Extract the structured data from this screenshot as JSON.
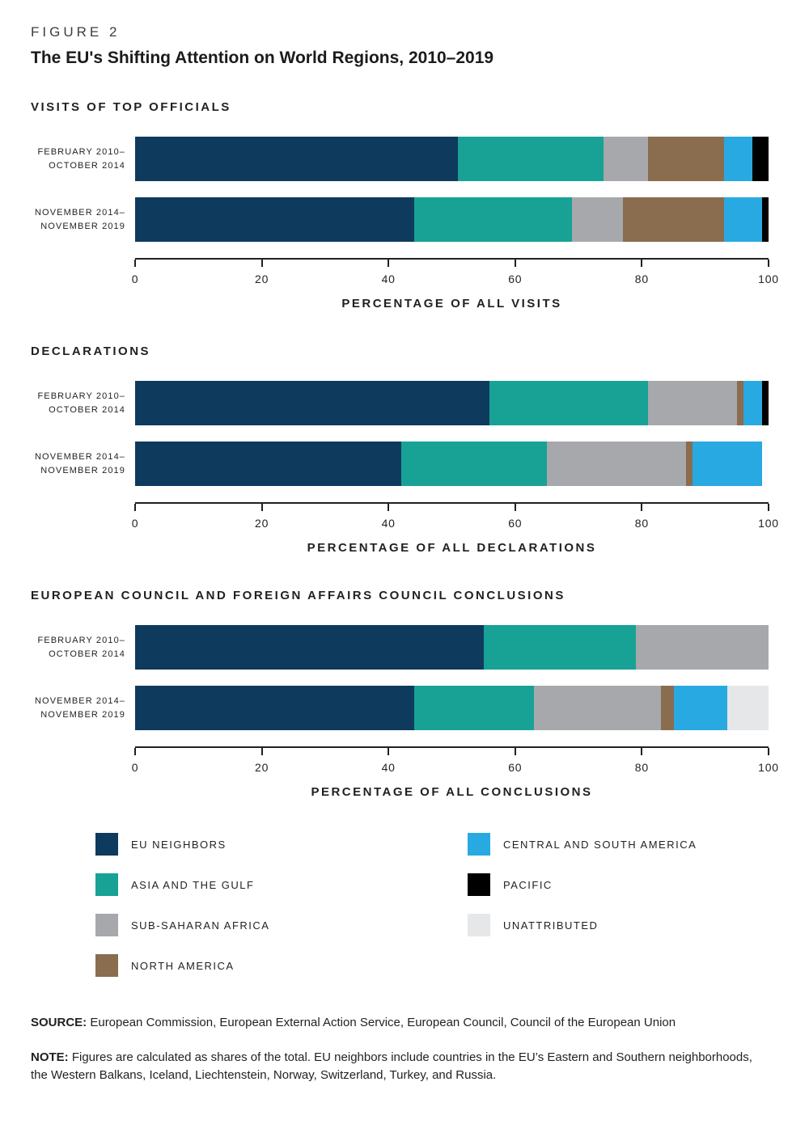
{
  "figure": {
    "kicker": "FIGURE 2",
    "title": "The EU's Shifting Attention on World Regions, 2010–2019"
  },
  "colors": {
    "eu_neighbors": "#0E3A5D",
    "asia_gulf": "#17A295",
    "sub_saharan_africa": "#A6A8AB",
    "north_america": "#8A6C4E",
    "central_south_america": "#29A9E1",
    "pacific": "#000000",
    "unattributed": "#E6E7E8"
  },
  "chart_data": [
    {
      "type": "bar",
      "orientation": "horizontal",
      "stacked": true,
      "title": "VISITS OF TOP OFFICIALS",
      "xlabel": "PERCENTAGE OF ALL VISITS",
      "xlim": [
        0,
        100
      ],
      "xticks": [
        0,
        20,
        40,
        60,
        80,
        100
      ],
      "categories": [
        [
          "FEBRUARY 2010–",
          "OCTOBER 2014"
        ],
        [
          "NOVEMBER 2014–",
          "NOVEMBER 2019"
        ]
      ],
      "series": [
        {
          "name": "EU NEIGHBORS",
          "color_key": "eu_neighbors",
          "values": [
            51,
            44
          ]
        },
        {
          "name": "ASIA AND THE GULF",
          "color_key": "asia_gulf",
          "values": [
            23,
            25
          ]
        },
        {
          "name": "SUB-SAHARAN AFRICA",
          "color_key": "sub_saharan_africa",
          "values": [
            7,
            8
          ]
        },
        {
          "name": "NORTH AMERICA",
          "color_key": "north_america",
          "values": [
            12,
            16
          ]
        },
        {
          "name": "CENTRAL AND SOUTH AMERICA",
          "color_key": "central_south_america",
          "values": [
            4.5,
            6
          ]
        },
        {
          "name": "PACIFIC",
          "color_key": "pacific",
          "values": [
            2.5,
            1
          ]
        }
      ]
    },
    {
      "type": "bar",
      "orientation": "horizontal",
      "stacked": true,
      "title": "DECLARATIONS",
      "xlabel": "PERCENTAGE OF ALL DECLARATIONS",
      "xlim": [
        0,
        100
      ],
      "xticks": [
        0,
        20,
        40,
        60,
        80,
        100
      ],
      "categories": [
        [
          "FEBRUARY 2010–",
          "OCTOBER 2014"
        ],
        [
          "NOVEMBER 2014–",
          "NOVEMBER 2019"
        ]
      ],
      "series": [
        {
          "name": "EU NEIGHBORS",
          "color_key": "eu_neighbors",
          "values": [
            56,
            42
          ]
        },
        {
          "name": "ASIA AND THE GULF",
          "color_key": "asia_gulf",
          "values": [
            25,
            23
          ]
        },
        {
          "name": "SUB-SAHARAN AFRICA",
          "color_key": "sub_saharan_africa",
          "values": [
            14,
            22
          ]
        },
        {
          "name": "NORTH AMERICA",
          "color_key": "north_america",
          "values": [
            1,
            1
          ]
        },
        {
          "name": "CENTRAL AND SOUTH AMERICA",
          "color_key": "central_south_america",
          "values": [
            3,
            11
          ]
        },
        {
          "name": "PACIFIC",
          "color_key": "pacific",
          "values": [
            1,
            0
          ]
        }
      ]
    },
    {
      "type": "bar",
      "orientation": "horizontal",
      "stacked": true,
      "title": "EUROPEAN COUNCIL AND FOREIGN AFFAIRS COUNCIL CONCLUSIONS",
      "xlabel": "PERCENTAGE OF ALL CONCLUSIONS",
      "xlim": [
        0,
        100
      ],
      "xticks": [
        0,
        20,
        40,
        60,
        80,
        100
      ],
      "categories": [
        [
          "FEBRUARY 2010–",
          "OCTOBER 2014"
        ],
        [
          "NOVEMBER 2014–",
          "NOVEMBER 2019"
        ]
      ],
      "series": [
        {
          "name": "EU NEIGHBORS",
          "color_key": "eu_neighbors",
          "values": [
            55,
            44
          ]
        },
        {
          "name": "ASIA AND THE GULF",
          "color_key": "asia_gulf",
          "values": [
            24,
            19
          ]
        },
        {
          "name": "SUB-SAHARAN AFRICA",
          "color_key": "sub_saharan_africa",
          "values": [
            21,
            20
          ]
        },
        {
          "name": "NORTH AMERICA",
          "color_key": "north_america",
          "values": [
            0,
            2
          ]
        },
        {
          "name": "CENTRAL AND SOUTH AMERICA",
          "color_key": "central_south_america",
          "values": [
            0,
            8.5
          ]
        },
        {
          "name": "UNATTRIBUTED",
          "color_key": "unattributed",
          "values": [
            0,
            6.5
          ]
        }
      ]
    }
  ],
  "legend": {
    "columns": [
      [
        {
          "label": "EU NEIGHBORS",
          "color_key": "eu_neighbors"
        },
        {
          "label": "ASIA AND THE GULF",
          "color_key": "asia_gulf"
        },
        {
          "label": "SUB-SAHARAN AFRICA",
          "color_key": "sub_saharan_africa"
        },
        {
          "label": "NORTH AMERICA",
          "color_key": "north_america"
        }
      ],
      [
        {
          "label": "CENTRAL AND SOUTH AMERICA",
          "color_key": "central_south_america"
        },
        {
          "label": "PACIFIC",
          "color_key": "pacific"
        },
        {
          "label": "UNATTRIBUTED",
          "color_key": "unattributed"
        }
      ]
    ]
  },
  "footer": {
    "source_label": "SOURCE:",
    "source_text": "European Commission, European External Action Service, European Council, Council of the European Union",
    "note_label": "NOTE:",
    "note_text": "Figures are calculated as shares of the total. EU neighbors include countries in the EU’s Eastern and Southern neighborhoods, the Western Balkans, Iceland, Liechtenstein, Norway, Switzerland, Turkey, and Russia."
  }
}
